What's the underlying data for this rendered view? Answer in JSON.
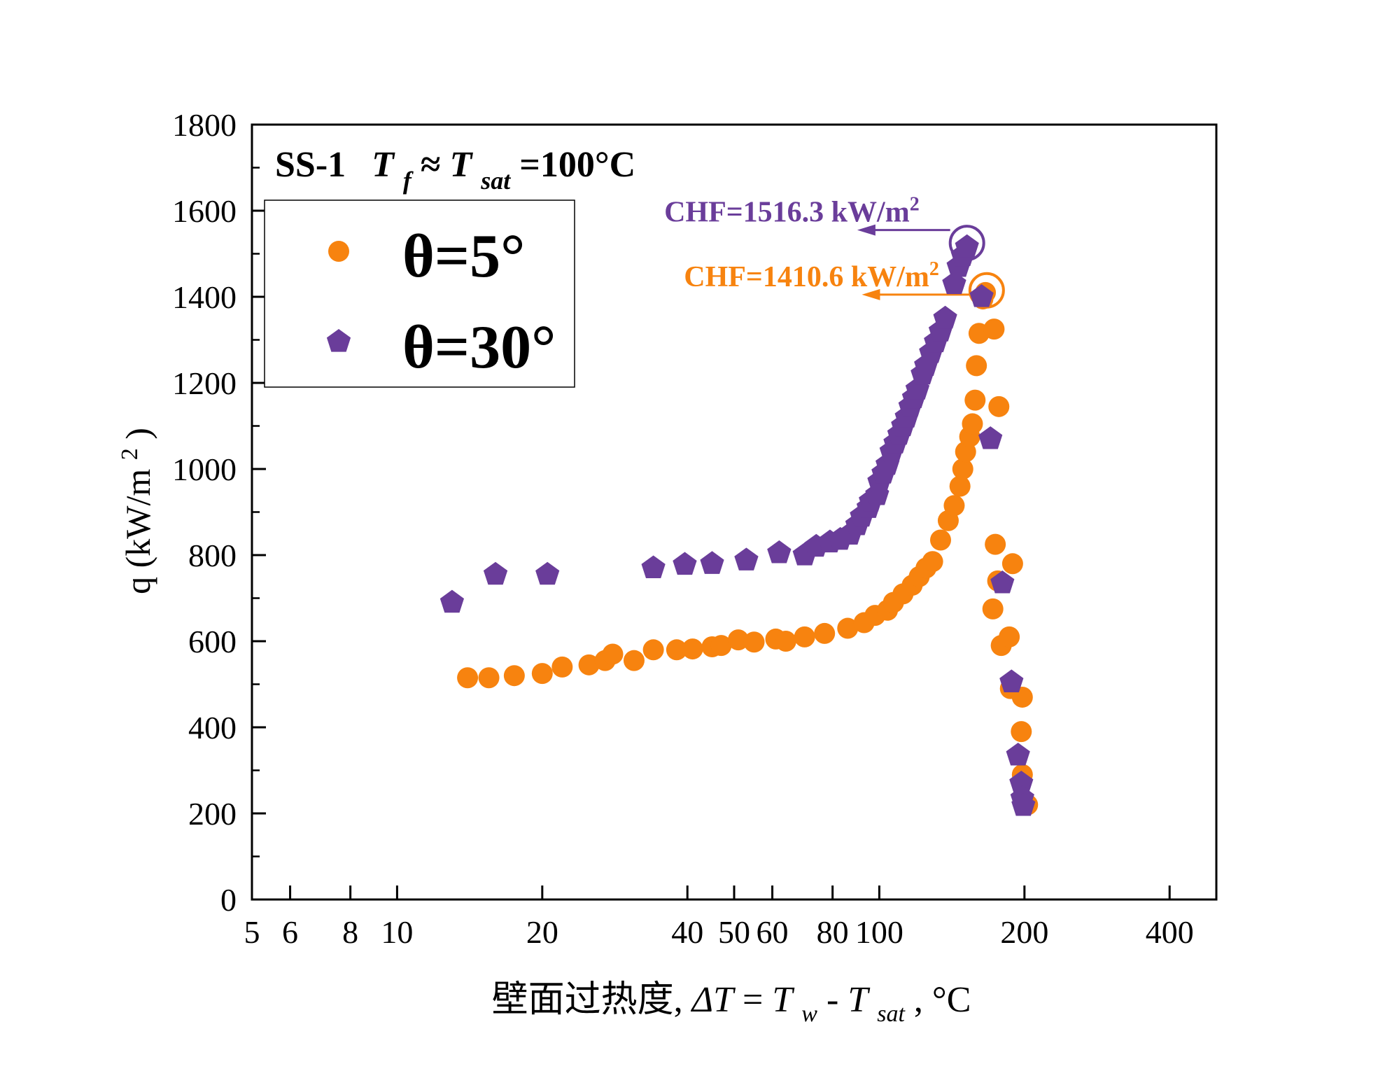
{
  "chart_data": {
    "type": "scatter",
    "x_scale": "log",
    "xlim": [
      5,
      500
    ],
    "ylim": [
      0,
      1800
    ],
    "x_ticks": [
      5,
      6,
      8,
      10,
      20,
      40,
      50,
      60,
      80,
      100,
      200,
      400
    ],
    "x_tick_labels": [
      "5",
      "6",
      "8",
      "10",
      "20",
      "40",
      "50",
      "60",
      "80",
      "100",
      "200",
      "400"
    ],
    "y_ticks": [
      0,
      200,
      400,
      600,
      800,
      1000,
      1200,
      1400,
      1600,
      1800
    ],
    "y_tick_labels": [
      "0",
      "200",
      "400",
      "600",
      "800",
      "1000",
      "1200",
      "1400",
      "1600",
      "1800"
    ],
    "xlabel": {
      "prefix": "壁面过热度, ",
      "delta_t": "ΔT",
      "eq": "=",
      "tw": "T",
      "tw_sub": "w",
      "dash": "-",
      "tsat": "T",
      "tsat_sub": "sat",
      "suffix": " , °C"
    },
    "ylabel": {
      "text": "q (kW/m",
      "sup": "2",
      "close": ")"
    },
    "condition": {
      "sample": "SS-1",
      "tf": "T",
      "tf_sub": "f",
      "approx": " ≈ ",
      "tsat": "T",
      "tsat_sub": "sat",
      "value": "=100°C"
    },
    "legend_position": "top-left",
    "series": [
      {
        "name": "θ=5°",
        "marker": "circle",
        "color": "#f7830f",
        "points": [
          [
            14,
            515
          ],
          [
            15.5,
            515
          ],
          [
            17.5,
            520
          ],
          [
            20,
            525
          ],
          [
            22,
            540
          ],
          [
            25,
            545
          ],
          [
            27,
            555
          ],
          [
            28,
            570
          ],
          [
            31,
            555
          ],
          [
            34,
            580
          ],
          [
            38,
            580
          ],
          [
            41,
            582
          ],
          [
            45,
            587
          ],
          [
            47,
            590
          ],
          [
            51,
            603
          ],
          [
            55,
            598
          ],
          [
            61,
            605
          ],
          [
            64,
            600
          ],
          [
            70,
            610
          ],
          [
            77,
            618
          ],
          [
            86,
            630
          ],
          [
            93,
            643
          ],
          [
            98,
            660
          ],
          [
            104,
            672
          ],
          [
            107,
            690
          ],
          [
            112,
            710
          ],
          [
            117,
            730
          ],
          [
            121,
            750
          ],
          [
            125,
            770
          ],
          [
            129,
            785
          ],
          [
            134,
            835
          ],
          [
            139,
            880
          ],
          [
            143,
            915
          ],
          [
            147,
            960
          ],
          [
            149,
            1000
          ],
          [
            151,
            1040
          ],
          [
            154,
            1075
          ],
          [
            156,
            1105
          ],
          [
            158,
            1160
          ],
          [
            159,
            1240
          ],
          [
            161,
            1315
          ],
          [
            164,
            1395
          ],
          [
            166,
            1410
          ],
          [
            173,
            1325
          ],
          [
            177,
            1145
          ],
          [
            174,
            825
          ],
          [
            176,
            740
          ],
          [
            172,
            675
          ],
          [
            179,
            590
          ],
          [
            186,
            610
          ],
          [
            189,
            780
          ],
          [
            187,
            490
          ],
          [
            198,
            470
          ],
          [
            197,
            390
          ],
          [
            198,
            290
          ],
          [
            203,
            220
          ]
        ]
      },
      {
        "name": "θ=30°",
        "marker": "pentagon",
        "color": "#6a3d9a",
        "points": [
          [
            13,
            690
          ],
          [
            16,
            755
          ],
          [
            20.5,
            755
          ],
          [
            34,
            770
          ],
          [
            39.5,
            778
          ],
          [
            45,
            780
          ],
          [
            53,
            788
          ],
          [
            62,
            805
          ],
          [
            70,
            800
          ],
          [
            74,
            820
          ],
          [
            79,
            830
          ],
          [
            83,
            836
          ],
          [
            87,
            848
          ],
          [
            90,
            870
          ],
          [
            92,
            890
          ],
          [
            95,
            910
          ],
          [
            96,
            925
          ],
          [
            99,
            940
          ],
          [
            100,
            970
          ],
          [
            102,
            990
          ],
          [
            104,
            1010
          ],
          [
            106,
            1040
          ],
          [
            108,
            1060
          ],
          [
            110,
            1080
          ],
          [
            112,
            1100
          ],
          [
            114,
            1120
          ],
          [
            116,
            1145
          ],
          [
            118,
            1165
          ],
          [
            120,
            1185
          ],
          [
            123,
            1220
          ],
          [
            125,
            1240
          ],
          [
            128,
            1270
          ],
          [
            131,
            1295
          ],
          [
            134,
            1320
          ],
          [
            137,
            1350
          ],
          [
            143,
            1430
          ],
          [
            146,
            1470
          ],
          [
            149,
            1495
          ],
          [
            152,
            1516
          ],
          [
            163,
            1400
          ],
          [
            170,
            1070
          ],
          [
            180,
            735
          ],
          [
            188,
            505
          ],
          [
            194,
            335
          ],
          [
            197,
            270
          ],
          [
            198,
            235
          ],
          [
            199,
            218
          ]
        ]
      }
    ],
    "annotations": [
      {
        "text": "CHF=1516.3 kW/m",
        "sup": "2",
        "color": "#6a3d9a",
        "point": [
          152,
          1525
        ],
        "arrow_to": [
          90,
          1555
        ]
      },
      {
        "text": "CHF=1410.6 kW/m",
        "sup": "2",
        "color": "#f7830f",
        "point": [
          167,
          1415
        ],
        "arrow_to": [
          92,
          1405
        ]
      }
    ]
  }
}
